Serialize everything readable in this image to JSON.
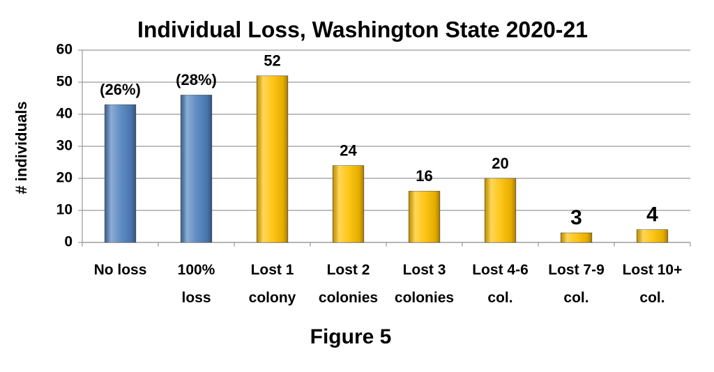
{
  "chart_data": {
    "type": "bar",
    "title": "Individual Loss, Washington State 2020-21",
    "subtitle": "Figure 5",
    "y_label": "# individuals",
    "categories": [
      [
        "No loss"
      ],
      [
        "100%",
        "loss"
      ],
      [
        "Lost 1",
        "colony"
      ],
      [
        "Lost 2",
        "colonies"
      ],
      [
        "Lost 3",
        "colonies"
      ],
      [
        "Lost 4-6",
        "col."
      ],
      [
        "Lost 7-9",
        "col."
      ],
      [
        "Lost 10+",
        "col."
      ]
    ],
    "values": [
      43,
      46,
      52,
      24,
      16,
      20,
      3,
      4
    ],
    "annotations": [
      "(26%)",
      "(28%)"
    ],
    "colors": [
      "#4f81bd",
      "#4f81bd",
      "#ffc000",
      "#ffc000",
      "#ffc000",
      "#ffc000",
      "#ffc000",
      "#ffc000"
    ],
    "ylim": [
      0,
      60
    ],
    "yticks": [
      0,
      10,
      20,
      30,
      40,
      50,
      60
    ],
    "grid": true
  }
}
